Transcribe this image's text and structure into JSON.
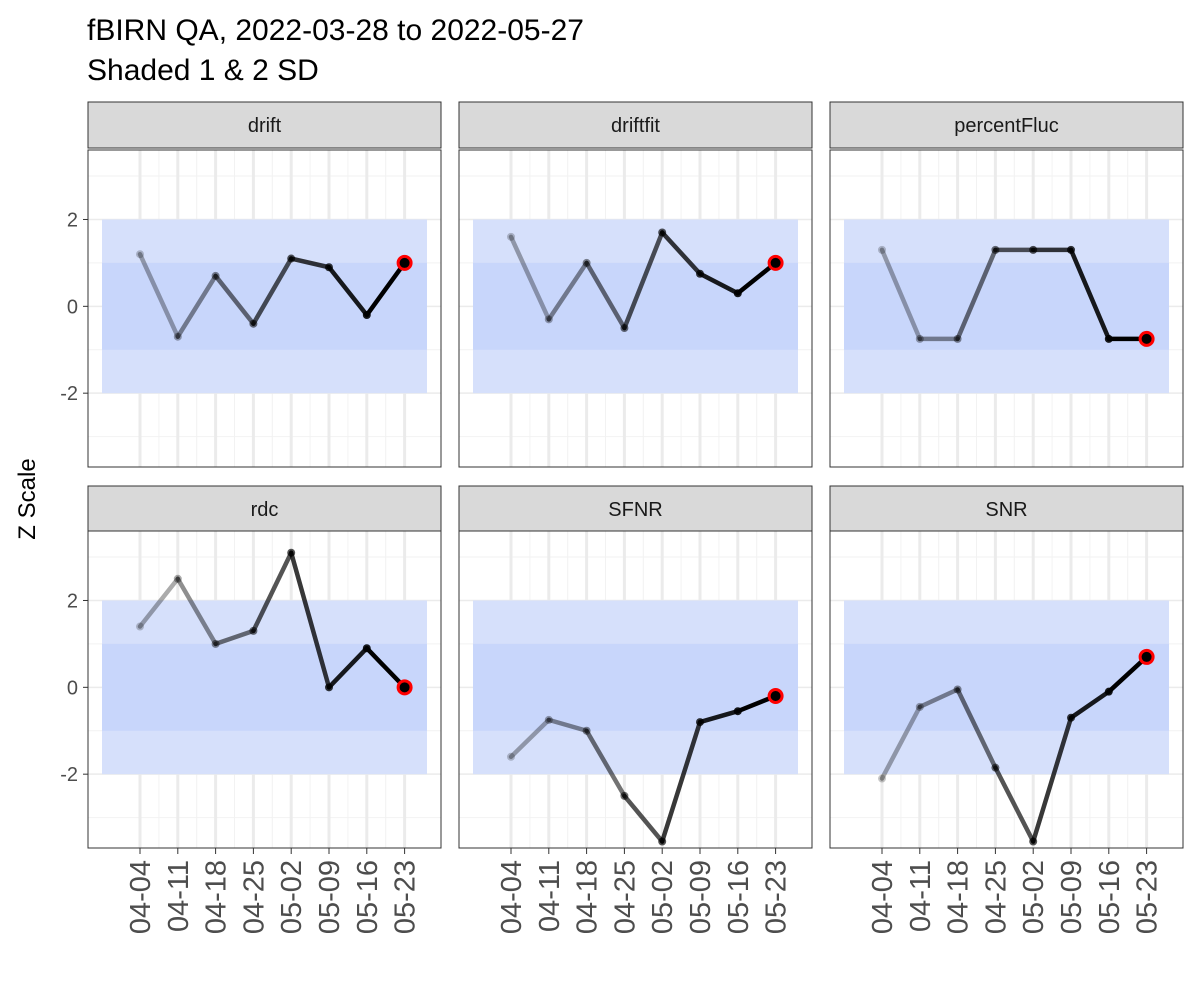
{
  "chart_data": {
    "type": "line",
    "title": "fBIRN QA, 2022-03-28 to 2022-05-27",
    "subtitle": "Shaded 1 & 2 SD",
    "ylabel": "Z Scale",
    "x": [
      "04-04",
      "04-11",
      "04-18",
      "04-25",
      "05-02",
      "05-09",
      "05-16",
      "05-23"
    ],
    "ylim": [
      -3.7,
      3.6
    ],
    "yticks": [
      "-2",
      "0",
      "2"
    ],
    "yticks_values": [
      -2,
      0,
      2
    ],
    "shaded_bands": [
      {
        "from": -2,
        "to": 2,
        "color": "#d6e0fb"
      },
      {
        "from": -1,
        "to": 1,
        "color": "#c3d3fb"
      }
    ],
    "highlight_last_point_color": "#ff0000",
    "grid": true,
    "facets": [
      {
        "name": "drift",
        "values": [
          1.2,
          -0.7,
          0.7,
          -0.4,
          1.1,
          0.9,
          -0.2,
          1.0
        ]
      },
      {
        "name": "driftfit",
        "values": [
          1.6,
          -0.3,
          1.0,
          -0.5,
          1.7,
          0.75,
          0.3,
          1.0
        ]
      },
      {
        "name": "percentFluc",
        "values": [
          1.3,
          -0.75,
          -0.75,
          1.3,
          1.3,
          1.3,
          -0.75,
          -0.75
        ]
      },
      {
        "name": "rdc",
        "values": [
          1.4,
          2.5,
          1.0,
          1.3,
          3.1,
          0.0,
          0.9,
          0.0
        ]
      },
      {
        "name": "SFNR",
        "values": [
          -1.6,
          -0.75,
          -1.0,
          -2.5,
          -3.55,
          -0.8,
          -0.55,
          -0.2
        ]
      },
      {
        "name": "SNR",
        "values": [
          -2.1,
          -0.45,
          -0.05,
          -1.85,
          -3.55,
          -0.7,
          -0.1,
          0.7
        ]
      }
    ]
  }
}
